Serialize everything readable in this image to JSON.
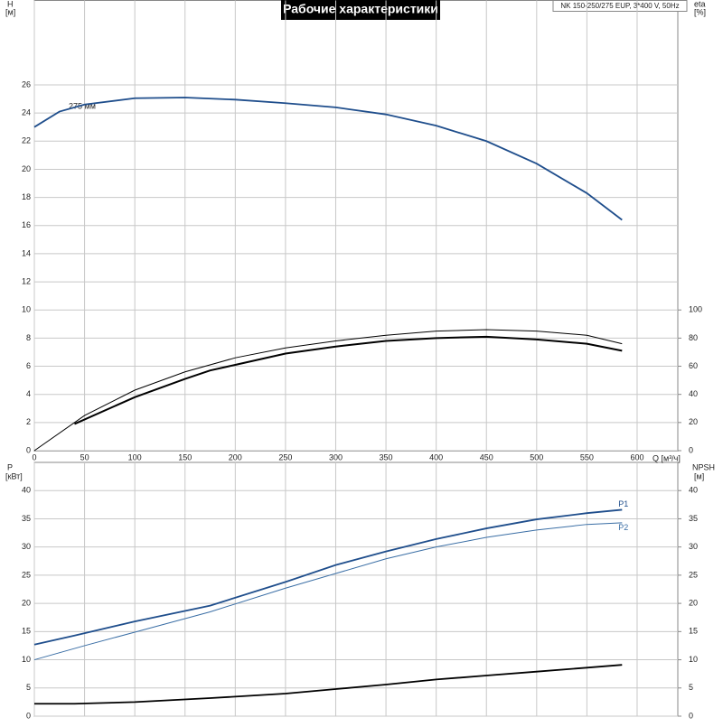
{
  "chart_data": [
    {
      "type": "line",
      "title": "Рабочие характеристики",
      "info": "NK 150-250/275 EUP, 3*400 V, 50Hz",
      "ylabel": "H",
      "ylabel_unit": "[м]",
      "y2label": "eta",
      "y2label_unit": "[%]",
      "xlabel": "Q [м³/ч]",
      "xlim": [
        0,
        640.5
      ],
      "xticks": [
        0,
        50,
        100,
        150,
        200,
        250,
        300,
        350,
        400,
        450,
        500,
        550,
        600
      ],
      "ylim": [
        0,
        32
      ],
      "yticks": [
        0,
        2,
        4,
        6,
        8,
        10,
        12,
        14,
        16,
        18,
        20,
        22,
        24,
        26
      ],
      "y2lim": [
        0,
        320
      ],
      "y2ticks": [
        0,
        20,
        40,
        60,
        80,
        100
      ],
      "grid": true,
      "annotation": "275 мм",
      "series": [
        {
          "color": "#1f4e8c",
          "line_width": 1.8,
          "x": [
            0,
            25,
            50,
            100,
            150,
            200,
            250,
            300,
            350,
            400,
            450,
            500,
            550,
            585
          ],
          "values": [
            23.0,
            24.1,
            24.6,
            25.05,
            25.1,
            24.95,
            24.7,
            24.4,
            23.9,
            23.1,
            22.0,
            20.4,
            18.3,
            16.4
          ]
        },
        {
          "color": "#000000",
          "line_width": 1,
          "axis": "y2",
          "x": [
            0,
            50,
            100,
            150,
            200,
            250,
            300,
            350,
            400,
            450,
            500,
            550,
            585
          ],
          "values": [
            0,
            25,
            43,
            56,
            66,
            73,
            78,
            82,
            85,
            86,
            85,
            82,
            76
          ]
        },
        {
          "color": "#000000",
          "line_width": 2,
          "axis": "y2",
          "x": [
            40,
            100,
            150,
            175,
            200,
            250,
            300,
            350,
            400,
            450,
            500,
            550,
            585
          ],
          "values": [
            19,
            38,
            51,
            57,
            61,
            69,
            74,
            78,
            80,
            81,
            79,
            76,
            71
          ]
        }
      ]
    },
    {
      "type": "line",
      "ylabel": "P",
      "ylabel_unit": "[кВт]",
      "y2label": "NPSH",
      "y2label_unit": "[м]",
      "xlim": [
        0,
        640.5
      ],
      "ylim": [
        0,
        45
      ],
      "yticks": [
        0,
        5,
        10,
        15,
        20,
        25,
        30,
        35,
        40
      ],
      "y2lim": [
        0,
        45
      ],
      "y2ticks": [
        0,
        5,
        10,
        15,
        20,
        25,
        30,
        35,
        40
      ],
      "grid": true,
      "series": [
        {
          "name": "P1",
          "color": "#1f4e8c",
          "line_width": 1.8,
          "x": [
            0,
            40,
            100,
            175,
            250,
            300,
            350,
            400,
            450,
            500,
            550,
            585
          ],
          "values": [
            12.7,
            14.3,
            16.8,
            19.6,
            23.8,
            26.8,
            29.2,
            31.4,
            33.3,
            34.9,
            36.0,
            36.6
          ]
        },
        {
          "name": "P2",
          "color": "#3a6ea5",
          "line_width": 1,
          "x": [
            0,
            50,
            100,
            175,
            250,
            300,
            350,
            400,
            450,
            500,
            550,
            585
          ],
          "values": [
            10.0,
            12.5,
            14.9,
            18.5,
            22.7,
            25.3,
            27.9,
            30.0,
            31.7,
            33.0,
            34.0,
            34.3
          ]
        },
        {
          "color": "#000000",
          "line_width": 1.8,
          "axis": "y2",
          "x": [
            0,
            40,
            100,
            175,
            250,
            300,
            350,
            400,
            450,
            500,
            550,
            585
          ],
          "values": [
            2.2,
            2.2,
            2.5,
            3.2,
            4.0,
            4.8,
            5.6,
            6.5,
            7.2,
            7.9,
            8.6,
            9.1
          ]
        }
      ]
    }
  ]
}
